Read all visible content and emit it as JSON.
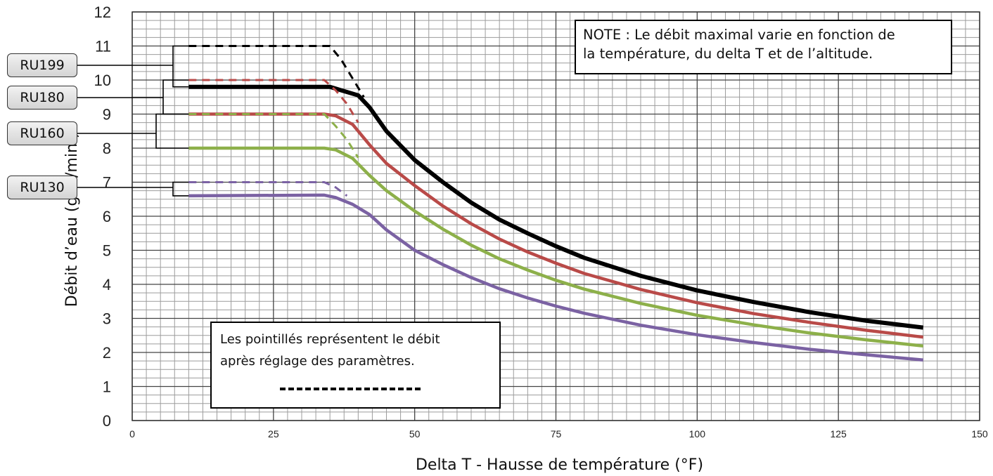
{
  "chart_data": {
    "type": "line",
    "xlabel": "Delta T - Hausse de température (°F)",
    "ylabel": "Débit d’eau (gal./min.)",
    "xlim": [
      0,
      150
    ],
    "ylim": [
      0,
      12
    ],
    "x_ticks": [
      "0",
      "25",
      "50",
      "75",
      "100",
      "125",
      "150"
    ],
    "y_ticks": [
      "0",
      "1",
      "2",
      "3",
      "4",
      "5",
      "6",
      "7",
      "8",
      "9",
      "10",
      "11",
      "12"
    ],
    "grid": true,
    "series": [
      {
        "name": "RU199",
        "color": "#000000",
        "style": "solid",
        "points": [
          [
            10,
            9.8
          ],
          [
            35,
            9.8
          ],
          [
            37,
            9.7
          ],
          [
            40,
            9.55
          ],
          [
            42,
            9.2
          ],
          [
            45,
            8.5
          ],
          [
            50,
            7.65
          ],
          [
            55,
            7.0
          ],
          [
            60,
            6.4
          ],
          [
            65,
            5.9
          ],
          [
            70,
            5.5
          ],
          [
            75,
            5.12
          ],
          [
            80,
            4.78
          ],
          [
            90,
            4.25
          ],
          [
            100,
            3.82
          ],
          [
            110,
            3.48
          ],
          [
            120,
            3.18
          ],
          [
            130,
            2.93
          ],
          [
            140,
            2.73
          ]
        ]
      },
      {
        "name": "RU180",
        "color": "#b94a48",
        "style": "solid",
        "points": [
          [
            10,
            9.0
          ],
          [
            34,
            9.0
          ],
          [
            36,
            8.95
          ],
          [
            39,
            8.7
          ],
          [
            42,
            8.1
          ],
          [
            45,
            7.55
          ],
          [
            50,
            6.9
          ],
          [
            55,
            6.3
          ],
          [
            60,
            5.78
          ],
          [
            65,
            5.33
          ],
          [
            70,
            4.95
          ],
          [
            75,
            4.62
          ],
          [
            80,
            4.32
          ],
          [
            90,
            3.85
          ],
          [
            100,
            3.46
          ],
          [
            110,
            3.14
          ],
          [
            120,
            2.88
          ],
          [
            130,
            2.65
          ],
          [
            140,
            2.45
          ]
        ]
      },
      {
        "name": "RU160",
        "color": "#8db04a",
        "style": "solid",
        "points": [
          [
            10,
            8.0
          ],
          [
            34,
            8.0
          ],
          [
            36,
            7.95
          ],
          [
            39,
            7.7
          ],
          [
            42,
            7.2
          ],
          [
            45,
            6.75
          ],
          [
            50,
            6.15
          ],
          [
            55,
            5.62
          ],
          [
            60,
            5.15
          ],
          [
            65,
            4.75
          ],
          [
            70,
            4.42
          ],
          [
            75,
            4.12
          ],
          [
            80,
            3.86
          ],
          [
            90,
            3.44
          ],
          [
            100,
            3.09
          ],
          [
            110,
            2.81
          ],
          [
            120,
            2.57
          ],
          [
            130,
            2.37
          ],
          [
            140,
            2.19
          ]
        ]
      },
      {
        "name": "RU130",
        "color": "#7b62a3",
        "style": "solid",
        "points": [
          [
            10,
            6.6
          ],
          [
            34,
            6.62
          ],
          [
            36,
            6.55
          ],
          [
            39,
            6.35
          ],
          [
            42,
            6.05
          ],
          [
            45,
            5.6
          ],
          [
            50,
            5.0
          ],
          [
            55,
            4.58
          ],
          [
            60,
            4.2
          ],
          [
            65,
            3.87
          ],
          [
            70,
            3.6
          ],
          [
            75,
            3.36
          ],
          [
            80,
            3.15
          ],
          [
            90,
            2.8
          ],
          [
            100,
            2.52
          ],
          [
            110,
            2.29
          ],
          [
            120,
            2.09
          ],
          [
            130,
            1.93
          ],
          [
            140,
            1.78
          ]
        ]
      },
      {
        "name": "RU199",
        "color": "#000000",
        "style": "dashed",
        "points": [
          [
            10,
            11.0
          ],
          [
            35,
            11.0
          ],
          [
            37,
            10.6
          ],
          [
            39,
            10.05
          ],
          [
            41,
            9.5
          ]
        ]
      },
      {
        "name": "RU180",
        "color": "#b94a48",
        "style": "dashed",
        "points": [
          [
            10,
            10.0
          ],
          [
            34,
            10.0
          ],
          [
            36,
            9.7
          ],
          [
            38,
            9.3
          ],
          [
            40,
            8.75
          ]
        ]
      },
      {
        "name": "RU160",
        "color": "#8db04a",
        "style": "dashed",
        "points": [
          [
            10,
            9.0
          ],
          [
            34,
            9.0
          ],
          [
            36,
            8.65
          ],
          [
            38,
            8.25
          ],
          [
            40,
            7.72
          ]
        ]
      },
      {
        "name": "RU130",
        "color": "#7b62a3",
        "style": "dashed",
        "points": [
          [
            10,
            7.0
          ],
          [
            34,
            7.0
          ],
          [
            36,
            6.85
          ],
          [
            38,
            6.6
          ]
        ]
      }
    ]
  },
  "models": [
    {
      "label": "RU199",
      "upper": 11.0,
      "lower": 9.8
    },
    {
      "label": "RU180",
      "upper": 10.0,
      "lower": 9.0
    },
    {
      "label": "RU160",
      "upper": 9.0,
      "lower": 8.0
    },
    {
      "label": "RU130",
      "upper": 7.0,
      "lower": 6.6
    }
  ],
  "notes": {
    "main_line1": "NOTE : Le débit maximal varie en fonction de",
    "main_line2": "la température, du delta T et de l’altitude.",
    "dashed_line1": "Les pointillés représentent le débit",
    "dashed_line2": "après réglage des paramètres."
  }
}
